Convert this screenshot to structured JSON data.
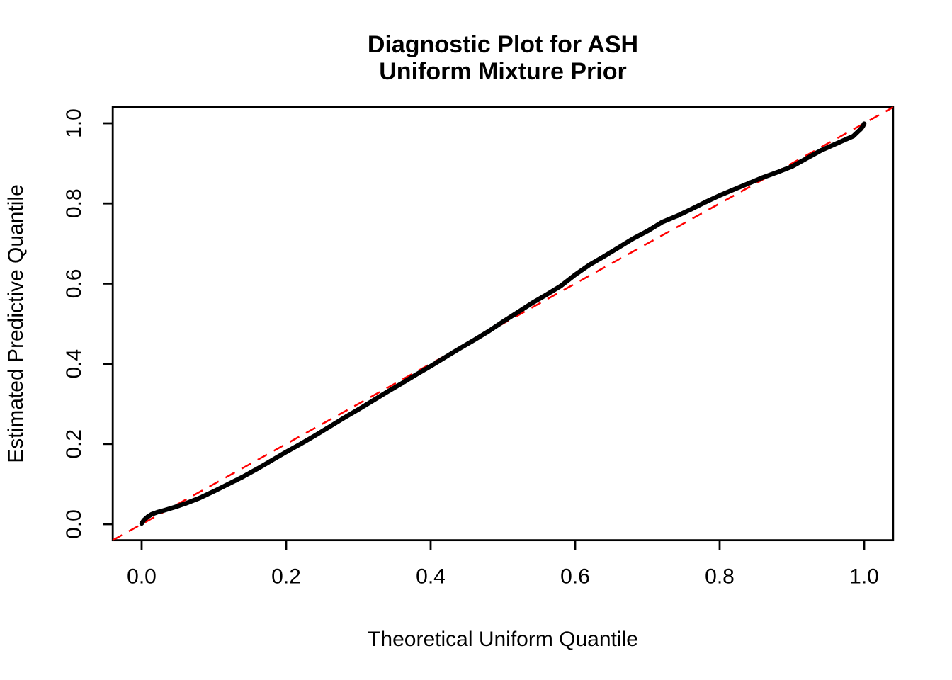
{
  "window": {
    "background_color": "#FFFFFF"
  },
  "chart_data": {
    "type": "line",
    "subtype": "qq-plot",
    "title_lines": [
      "Diagnostic Plot for ASH",
      "Uniform Mixture Prior"
    ],
    "xlabel": "Theoretical Uniform Quantile",
    "ylabel": "Estimated Predictive Quantile",
    "xlim": [
      -0.04,
      1.04
    ],
    "ylim": [
      -0.04,
      1.04
    ],
    "x_ticks": [
      0.0,
      0.2,
      0.4,
      0.6,
      0.8,
      1.0
    ],
    "y_ticks": [
      0.0,
      0.2,
      0.4,
      0.6,
      0.8,
      1.0
    ],
    "x_tick_labels": [
      "0.0",
      "0.2",
      "0.4",
      "0.6",
      "0.8",
      "1.0"
    ],
    "y_tick_labels": [
      "0.0",
      "0.2",
      "0.4",
      "0.6",
      "0.8",
      "1.0"
    ],
    "grid": false,
    "legend_position": "none",
    "colors": {
      "curve": "#000000",
      "reference_line": "#FF0000",
      "axis": "#000000",
      "background": "#FFFFFF"
    },
    "series": [
      {
        "name": "estimated-vs-theoretical-quantiles",
        "style": "solid",
        "color": "#000000",
        "stroke_width": 6.5,
        "points": [
          [
            0.0,
            0.002
          ],
          [
            0.003,
            0.01
          ],
          [
            0.008,
            0.018
          ],
          [
            0.014,
            0.025
          ],
          [
            0.022,
            0.03
          ],
          [
            0.032,
            0.035
          ],
          [
            0.045,
            0.042
          ],
          [
            0.06,
            0.051
          ],
          [
            0.08,
            0.065
          ],
          [
            0.1,
            0.082
          ],
          [
            0.12,
            0.1
          ],
          [
            0.14,
            0.118
          ],
          [
            0.16,
            0.138
          ],
          [
            0.18,
            0.159
          ],
          [
            0.2,
            0.18
          ],
          [
            0.22,
            0.2
          ],
          [
            0.24,
            0.221
          ],
          [
            0.26,
            0.243
          ],
          [
            0.28,
            0.265
          ],
          [
            0.3,
            0.286
          ],
          [
            0.32,
            0.308
          ],
          [
            0.34,
            0.33
          ],
          [
            0.36,
            0.351
          ],
          [
            0.38,
            0.373
          ],
          [
            0.4,
            0.394
          ],
          [
            0.42,
            0.416
          ],
          [
            0.44,
            0.438
          ],
          [
            0.46,
            0.459
          ],
          [
            0.48,
            0.481
          ],
          [
            0.5,
            0.505
          ],
          [
            0.52,
            0.528
          ],
          [
            0.54,
            0.551
          ],
          [
            0.56,
            0.572
          ],
          [
            0.58,
            0.594
          ],
          [
            0.6,
            0.622
          ],
          [
            0.62,
            0.647
          ],
          [
            0.64,
            0.668
          ],
          [
            0.66,
            0.69
          ],
          [
            0.68,
            0.712
          ],
          [
            0.7,
            0.731
          ],
          [
            0.72,
            0.753
          ],
          [
            0.74,
            0.768
          ],
          [
            0.76,
            0.785
          ],
          [
            0.78,
            0.803
          ],
          [
            0.8,
            0.82
          ],
          [
            0.82,
            0.835
          ],
          [
            0.84,
            0.85
          ],
          [
            0.86,
            0.865
          ],
          [
            0.88,
            0.878
          ],
          [
            0.9,
            0.892
          ],
          [
            0.92,
            0.912
          ],
          [
            0.94,
            0.932
          ],
          [
            0.96,
            0.948
          ],
          [
            0.975,
            0.96
          ],
          [
            0.985,
            0.968
          ],
          [
            0.992,
            0.98
          ],
          [
            0.995,
            0.985
          ],
          [
            0.998,
            0.992
          ],
          [
            1.0,
            0.999
          ]
        ]
      },
      {
        "name": "reference-line-y-equals-x",
        "style": "dashed",
        "color": "#FF0000",
        "stroke_width": 2.5,
        "points": [
          [
            -0.04,
            -0.04
          ],
          [
            1.04,
            1.04
          ]
        ]
      }
    ]
  }
}
